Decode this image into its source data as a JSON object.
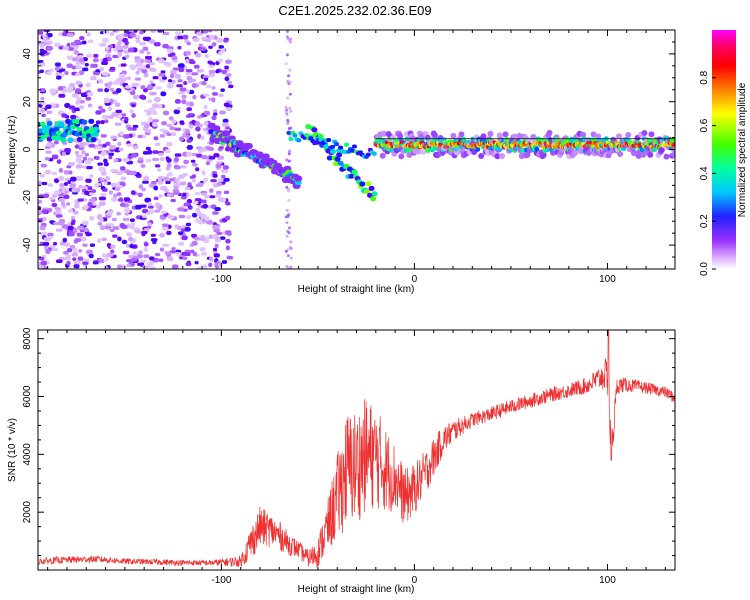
{
  "title": "C2E1.2025.232.02.36.E09",
  "chart_data": [
    {
      "type": "heatmap",
      "xlabel": "Height of straight line (km)",
      "ylabel": "Frequency (Hz)",
      "xlim": [
        -195,
        135
      ],
      "ylim": [
        -50,
        50
      ],
      "xticks": [
        -100,
        0,
        100
      ],
      "xtick_labels": [
        "-100",
        "0",
        "100"
      ],
      "yticks": [
        -40,
        -20,
        0,
        20,
        40
      ],
      "ytick_labels": [
        "-40",
        "-20",
        "0",
        "20",
        "40"
      ],
      "colorbar": {
        "label": "Normalized spectral amplitude",
        "ticks": [
          0.0,
          0.2,
          0.4,
          0.6,
          0.8
        ],
        "tick_labels": [
          "0.0",
          "0.2",
          "0.4",
          "0.6",
          "0.8"
        ],
        "range": [
          0,
          1
        ]
      },
      "colormap": [
        "#ffffff",
        "#c080ff",
        "#6a00ff",
        "#1010ff",
        "#00c8ff",
        "#00ff80",
        "#40ff00",
        "#ffff00",
        "#ff8000",
        "#ff0000",
        "#ff0060",
        "#ff00ff"
      ],
      "features": [
        {
          "name": "scattered_noise",
          "x_range": [
            -195,
            -95
          ],
          "y_range": [
            -50,
            50
          ],
          "amplitude": 0.2
        },
        {
          "name": "left_band",
          "x_range": [
            -195,
            -165
          ],
          "y_center": 8,
          "amplitude": 0.5
        },
        {
          "name": "descending_echo",
          "x_range": [
            -105,
            -60
          ],
          "y_start": 7,
          "y_end": -13,
          "amplitude": 0.6
        },
        {
          "name": "scatter_branch",
          "x_range": [
            -55,
            -20
          ],
          "y_start": 8,
          "y_end": -20,
          "amplitude": 0.6
        },
        {
          "name": "steady_band",
          "x_range": [
            -20,
            135
          ],
          "y_center": 2,
          "amplitude": 0.85
        }
      ]
    },
    {
      "type": "line",
      "xlabel": "Height of straight line (km)",
      "ylabel": "SNR (10 * v/v)",
      "xlim": [
        -195,
        135
      ],
      "ylim": [
        0,
        8300
      ],
      "xticks": [
        -100,
        0,
        100
      ],
      "xtick_labels": [
        "-100",
        "0",
        "100"
      ],
      "yticks": [
        2000,
        4000,
        6000,
        8000
      ],
      "ytick_labels": [
        "2000",
        "4000",
        "6000",
        "8000"
      ],
      "color": "#ee3030",
      "series": [
        {
          "name": "SNR",
          "x": [
            -195,
            -180,
            -165,
            -150,
            -135,
            -120,
            -105,
            -90,
            -85,
            -80,
            -75,
            -70,
            -65,
            -60,
            -55,
            -50,
            -45,
            -40,
            -35,
            -30,
            -25,
            -20,
            -15,
            -10,
            -5,
            0,
            5,
            10,
            15,
            20,
            25,
            30,
            40,
            50,
            60,
            70,
            80,
            90,
            95,
            100,
            102,
            105,
            110,
            120,
            130,
            135
          ],
          "values": [
            300,
            350,
            380,
            300,
            280,
            250,
            250,
            300,
            900,
            1500,
            1400,
            1200,
            900,
            700,
            400,
            600,
            1500,
            2500,
            3500,
            3600,
            4000,
            3900,
            3500,
            3200,
            2500,
            2800,
            3300,
            3900,
            4500,
            4800,
            5000,
            5200,
            5400,
            5650,
            5850,
            6050,
            6200,
            6400,
            6600,
            6800,
            4000,
            6400,
            6400,
            6300,
            6150,
            5950
          ],
          "noise": [
            120,
            120,
            120,
            100,
            100,
            100,
            100,
            200,
            600,
            700,
            600,
            500,
            400,
            300,
            300,
            500,
            900,
            1500,
            2000,
            2000,
            2000,
            1800,
            1500,
            1200,
            1000,
            900,
            800,
            700,
            500,
            400,
            300,
            250,
            250,
            250,
            250,
            250,
            250,
            300,
            400,
            600,
            800,
            300,
            250,
            200,
            200,
            200
          ]
        }
      ]
    }
  ]
}
